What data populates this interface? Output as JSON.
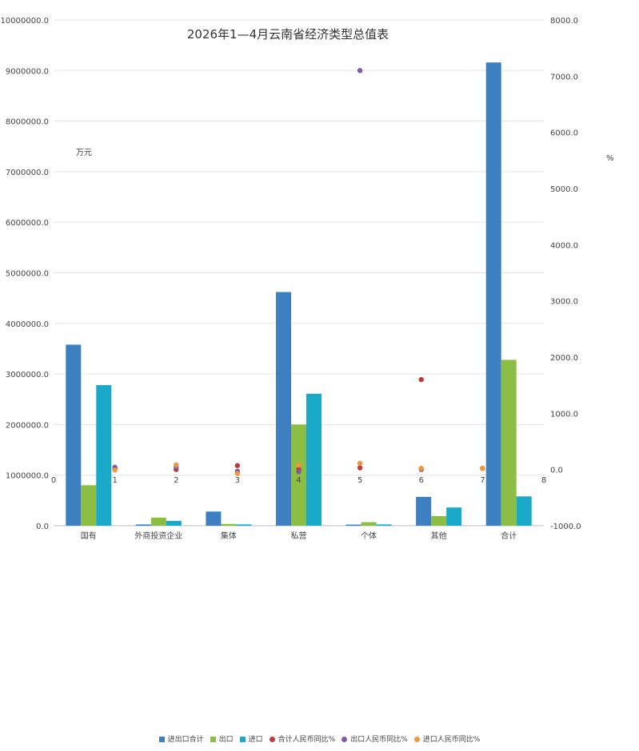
{
  "chart_data": {
    "type": "bar",
    "title": "2026年1—4月云南省经济类型总值表",
    "unit_left": "万元",
    "unit_right": "%",
    "categories": [
      "国有",
      "外商投资企业",
      "集体",
      "私营",
      "个体",
      "其他",
      "合计"
    ],
    "y_left": {
      "min": 0,
      "max": 10000000,
      "ticks": [
        "0.0",
        "1000000.0",
        "2000000.0",
        "3000000.0",
        "4000000.0",
        "5000000.0",
        "6000000.0",
        "7000000.0",
        "8000000.0",
        "9000000.0",
        "10000000.0"
      ]
    },
    "y_right": {
      "min": -1000,
      "max": 8000,
      "ticks": [
        "-1000.0",
        "0.0",
        "1000.0",
        "2000.0",
        "3000.0",
        "4000.0",
        "5000.0",
        "6000.0",
        "7000.0",
        "8000.0"
      ]
    },
    "x_secondary": {
      "min": 0,
      "max": 8,
      "ticks": [
        "0",
        "1",
        "2",
        "3",
        "4",
        "5",
        "6",
        "7",
        "8"
      ]
    },
    "bar_series": [
      {
        "name": "进出口合计",
        "color": "#3d7fc1",
        "values": [
          3580000,
          25000,
          280000,
          4620000,
          22000,
          570000,
          9160000
        ]
      },
      {
        "name": "出口",
        "color": "#8cbd45",
        "values": [
          800000,
          160000,
          35000,
          2000000,
          70000,
          190000,
          3280000
        ]
      },
      {
        "name": "进口",
        "color": "#1aa9c8",
        "values": [
          2780000,
          95000,
          25000,
          2610000,
          25000,
          360000,
          580000
        ]
      }
    ],
    "scatter_series": [
      {
        "name": "合计人民币同比%",
        "color": "#c0393b",
        "points": [
          [
            1,
            20
          ],
          [
            2,
            0
          ],
          [
            3,
            70
          ],
          [
            4,
            0
          ],
          [
            5,
            30
          ],
          [
            6,
            1600
          ],
          [
            7,
            20
          ]
        ]
      },
      {
        "name": "出口人民币同比%",
        "color": "#7f5aa8",
        "points": [
          [
            1,
            40
          ],
          [
            2,
            40
          ],
          [
            3,
            -30
          ],
          [
            4,
            -40
          ],
          [
            5,
            7100
          ],
          [
            6,
            0
          ],
          [
            7,
            20
          ]
        ]
      },
      {
        "name": "进口人民币同比%",
        "color": "#f0953a",
        "points": [
          [
            1,
            -10
          ],
          [
            2,
            80
          ],
          [
            3,
            -70
          ],
          [
            4,
            80
          ],
          [
            5,
            110
          ],
          [
            6,
            20
          ],
          [
            7,
            20
          ]
        ]
      }
    ],
    "grid": true,
    "legend_position": "bottom"
  }
}
